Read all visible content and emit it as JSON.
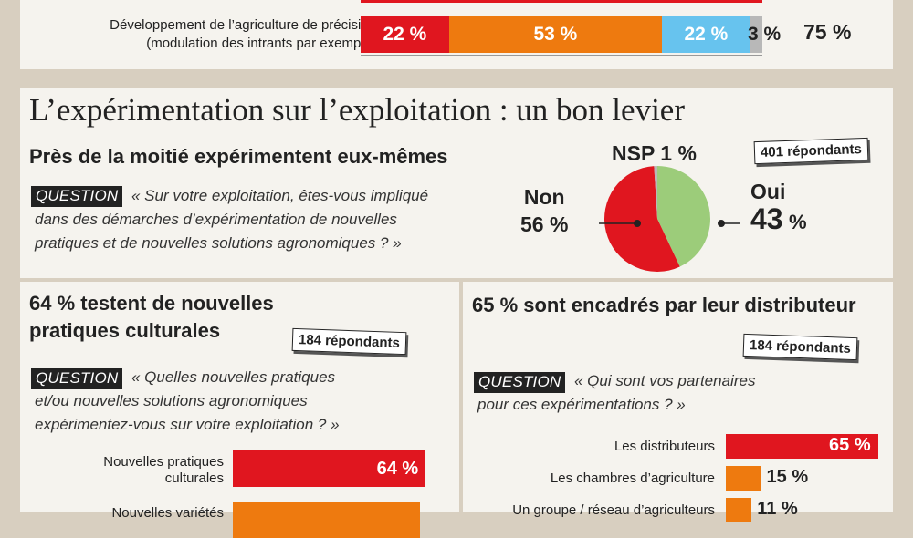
{
  "colors": {
    "red": "#e0161f",
    "orange": "#ee7a0f",
    "light_blue": "#67c3ee",
    "gray": "#b8b8b8",
    "green": "#9ccc7a",
    "panel": "#f5f3ee",
    "background": "#d8cfc0"
  },
  "top": {
    "row_label_1": "Développement de l’agriculture de précision",
    "row_label_2": "(modulation des intrants par exemple)",
    "segments": [
      {
        "label": "22 %",
        "value": 22,
        "color": "#e0161f"
      },
      {
        "label": "53 %",
        "value": 53,
        "color": "#ee7a0f"
      },
      {
        "label": "22 %",
        "value": 22,
        "color": "#67c3ee"
      },
      {
        "label": "3 %",
        "value": 3,
        "color": "#b8b8b8"
      }
    ],
    "total": "75 %"
  },
  "middle": {
    "title": "L’expérimentation sur l’exploitation : un bon levier",
    "subtitle": "Près de la moitié expérimentent eux-mêmes",
    "question_tag": "QUESTION",
    "question_lines": [
      "« Sur votre exploitation, êtes-vous impliqué",
      "dans des démarches d’expérimentation de nouvelles",
      "pratiques et de nouvelles solutions agronomiques ? »"
    ],
    "respondents": "401 répondants",
    "pie": {
      "nsp_label": "NSP 1 %",
      "non_word": "Non",
      "non_value": "56 %",
      "oui_word": "Oui",
      "oui_number": "43",
      "oui_unit": "%"
    }
  },
  "left": {
    "title_1": "64 % testent de nouvelles",
    "title_2": "pratiques culturales",
    "respondents": "184 répondants",
    "question_tag": "QUESTION",
    "question_lines": [
      "« Quelles nouvelles pratiques",
      "et/ou nouvelles solutions agronomiques",
      "expérimentez-vous sur votre exploitation ? »"
    ],
    "bars": [
      {
        "label_1": "Nouvelles pratiques",
        "label_2": "culturales",
        "value_label": "64 %",
        "value": 64,
        "color": "#e0161f"
      },
      {
        "label_1": "Nouvelles variétés",
        "label_2": "",
        "value_label": "",
        "value": 62,
        "color": "#ee7a0f"
      }
    ]
  },
  "right": {
    "title": "65 % sont encadrés par leur distributeur",
    "respondents": "184 répondants",
    "question_tag": "QUESTION",
    "question_lines": [
      "« Qui sont vos partenaires",
      "pour ces expérimentations ? »"
    ],
    "bars": [
      {
        "label": "Les distributeurs",
        "value_label": "65 %",
        "value": 65,
        "color": "#e0161f"
      },
      {
        "label": "Les chambres d’agriculture",
        "value_label": "15 %",
        "value": 15,
        "color": "#ee7a0f"
      },
      {
        "label": "Un groupe / réseau d’agriculteurs",
        "value_label": "11 %",
        "value": 11,
        "color": "#ee7a0f"
      }
    ]
  },
  "chart_data": [
    {
      "type": "bar",
      "categories": [
        "Développement de l’agriculture de précision (modulation des intrants par exemple)"
      ],
      "series": [
        {
          "values": [
            22
          ]
        },
        {
          "values": [
            53
          ]
        },
        {
          "values": [
            22
          ]
        },
        {
          "values": [
            3
          ]
        }
      ],
      "total_label": "75 %"
    },
    {
      "type": "pie",
      "title": "Près de la moitié expérimentent eux-mêmes",
      "labels": [
        "Oui",
        "Non",
        "NSP"
      ],
      "values": [
        43,
        56,
        1
      ]
    },
    {
      "type": "bar",
      "title": "64 % testent de nouvelles pratiques culturales",
      "categories": [
        "Nouvelles pratiques culturales",
        "Nouvelles variétés"
      ],
      "values": [
        64,
        62
      ]
    },
    {
      "type": "bar",
      "title": "65 % sont encadrés par leur distributeur",
      "categories": [
        "Les distributeurs",
        "Les chambres d’agriculture",
        "Un groupe / réseau d’agriculteurs"
      ],
      "values": [
        65,
        15,
        11
      ]
    }
  ]
}
